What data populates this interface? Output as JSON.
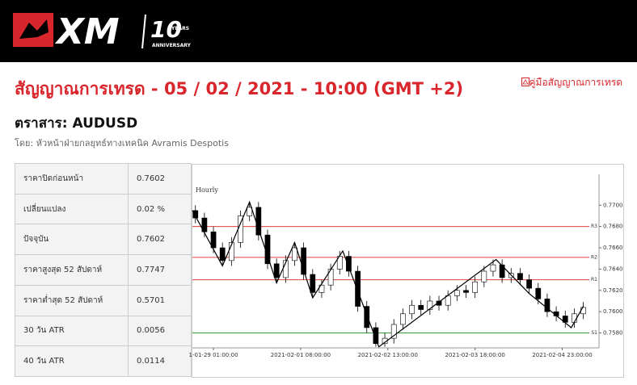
{
  "header": {
    "logo": "XM",
    "logo_years_number": "10",
    "logo_years": "YEARS",
    "logo_anniversary": "ANNIVERSARY",
    "title": "สัญญาณการเทรด - 05 / 02 / 2021 - 10:00 (GMT +2)",
    "guide_link": "คู่มือสัญญาณการเทรด",
    "instrument": "ตราสาร: AUDUSD",
    "author": "โดย: หัวหน้าฝ่ายกลยุทธ์ทางเทคนิค Avramis Despotis"
  },
  "table": {
    "rows": [
      [
        "ราคาปิดก่อนหน้า",
        "0.7602"
      ],
      [
        "เปลี่ยนแปลง",
        "0.02 %"
      ],
      [
        "ปัจจุบัน",
        "0.7602"
      ],
      [
        "ราคาสูงสุด 52 สัปดาห์",
        "0.7747"
      ],
      [
        "ราคาต่ำสุด 52 สัปดาห์",
        "0.5701"
      ],
      [
        "30 วัน ATR",
        "0.0056"
      ],
      [
        "40 วัน ATR",
        "0.0114"
      ]
    ]
  },
  "chart_data": {
    "type": "candlestick",
    "title": "Hourly",
    "up_color": "#ffffff",
    "down_color": "#000000",
    "x": [
      1,
      4,
      7,
      10,
      13,
      16,
      19,
      22,
      25,
      28,
      31,
      34,
      37,
      40,
      43,
      46,
      49,
      52,
      55,
      58,
      61,
      64,
      67,
      70,
      73,
      76,
      79,
      82,
      85,
      88,
      91,
      94,
      97,
      100,
      103,
      106,
      109,
      112,
      115,
      118,
      121,
      124,
      127,
      130
    ],
    "open": [
      0.7695,
      0.7688,
      0.7675,
      0.766,
      0.7648,
      0.7665,
      0.769,
      0.7698,
      0.7672,
      0.7645,
      0.7632,
      0.7648,
      0.766,
      0.7635,
      0.7618,
      0.7625,
      0.764,
      0.7652,
      0.7638,
      0.7605,
      0.7585,
      0.757,
      0.7575,
      0.7588,
      0.7598,
      0.7606,
      0.7602,
      0.761,
      0.7606,
      0.7615,
      0.762,
      0.7618,
      0.7628,
      0.7638,
      0.7644,
      0.7632,
      0.7636,
      0.763,
      0.7622,
      0.7612,
      0.76,
      0.7596,
      0.759,
      0.7598
    ],
    "high": [
      0.77,
      0.7693,
      0.768,
      0.7665,
      0.767,
      0.7695,
      0.7703,
      0.7703,
      0.7677,
      0.765,
      0.7653,
      0.7665,
      0.7665,
      0.764,
      0.763,
      0.7645,
      0.7657,
      0.7657,
      0.7643,
      0.761,
      0.759,
      0.758,
      0.7593,
      0.7603,
      0.7611,
      0.7611,
      0.7615,
      0.7615,
      0.762,
      0.7625,
      0.7625,
      0.7633,
      0.7643,
      0.7649,
      0.7649,
      0.7641,
      0.7641,
      0.7635,
      0.7627,
      0.7617,
      0.7605,
      0.7601,
      0.7603,
      0.7609
    ],
    "low": [
      0.7683,
      0.767,
      0.7655,
      0.7643,
      0.7643,
      0.766,
      0.7685,
      0.7667,
      0.764,
      0.7627,
      0.7627,
      0.7643,
      0.763,
      0.7613,
      0.7613,
      0.762,
      0.7635,
      0.7633,
      0.76,
      0.758,
      0.7567,
      0.7567,
      0.757,
      0.7583,
      0.7593,
      0.7597,
      0.7597,
      0.7601,
      0.7601,
      0.761,
      0.7613,
      0.7613,
      0.7623,
      0.7633,
      0.7627,
      0.7627,
      0.7625,
      0.7617,
      0.7607,
      0.7595,
      0.7591,
      0.7585,
      0.7585,
      0.7593
    ],
    "close": [
      0.7688,
      0.7675,
      0.766,
      0.7648,
      0.7665,
      0.769,
      0.7698,
      0.7672,
      0.7645,
      0.7632,
      0.7648,
      0.766,
      0.7635,
      0.7618,
      0.7625,
      0.764,
      0.7652,
      0.7638,
      0.7605,
      0.7585,
      0.757,
      0.7575,
      0.7588,
      0.7598,
      0.7606,
      0.7602,
      0.761,
      0.7606,
      0.7615,
      0.762,
      0.7618,
      0.7628,
      0.7638,
      0.7644,
      0.7632,
      0.7636,
      0.763,
      0.7622,
      0.7612,
      0.76,
      0.7596,
      0.759,
      0.7598,
      0.7604
    ],
    "zigzag": {
      "color": "#000000",
      "x": [
        0,
        10,
        19,
        28,
        34,
        40,
        50,
        62,
        101,
        112,
        126,
        130
      ],
      "values": [
        0.7695,
        0.7643,
        0.7703,
        0.7627,
        0.7665,
        0.7613,
        0.7657,
        0.7567,
        0.7649,
        0.7617,
        0.7585,
        0.7605
      ]
    },
    "levels": [
      {
        "name": "R3",
        "value": 0.768,
        "color": "#e04040"
      },
      {
        "name": "R2",
        "value": 0.7651,
        "color": "#e04040"
      },
      {
        "name": "R1",
        "value": 0.763,
        "color": "#e04040"
      },
      {
        "name": "S1",
        "value": 0.758,
        "color": "#3a9a3a"
      }
    ],
    "xlim": [
      0,
      132
    ],
    "xticks": [
      {
        "value": 7,
        "label": "1-01-29 01:00:00"
      },
      {
        "value": 36,
        "label": "2021-02-01 08:00:00"
      },
      {
        "value": 65,
        "label": "2021-02-02 13:00:00"
      },
      {
        "value": 94,
        "label": "2021-02-03 18:00:00"
      },
      {
        "value": 123,
        "label": "2021-02-04 23:00:00"
      }
    ],
    "ylim": [
      0.7566,
      0.7729
    ],
    "yticks": [
      {
        "value": 0.77,
        "label": "0.7700"
      },
      {
        "value": 0.768,
        "label": "0.7680"
      },
      {
        "value": 0.766,
        "label": "0.7660"
      },
      {
        "value": 0.764,
        "label": "0.7640"
      },
      {
        "value": 0.762,
        "label": "0.7620"
      },
      {
        "value": 0.76,
        "label": "0.7600"
      },
      {
        "value": 0.758,
        "label": "0.7580"
      }
    ]
  }
}
